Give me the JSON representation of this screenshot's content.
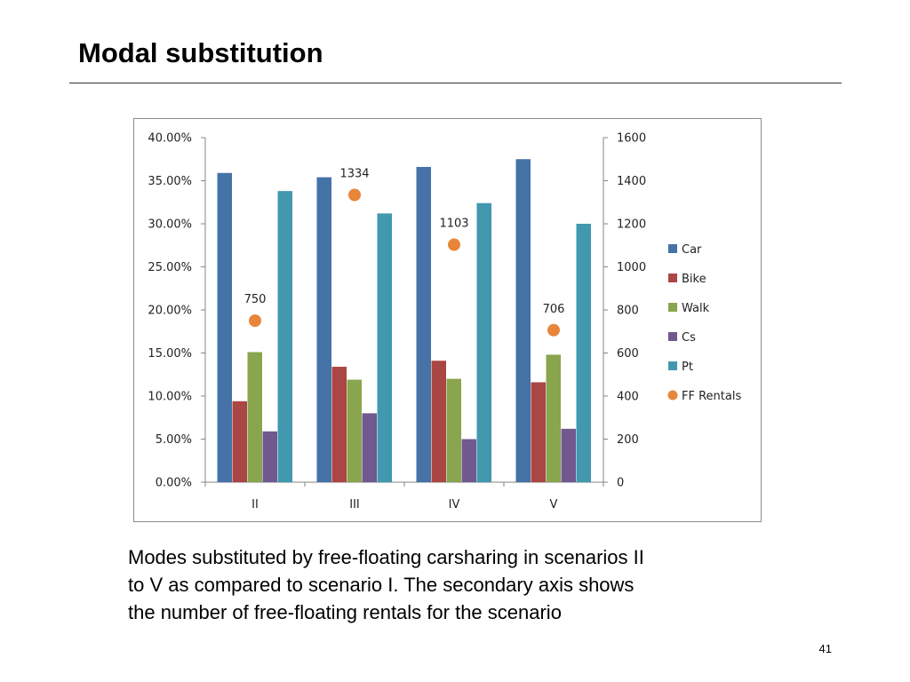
{
  "slide": {
    "title": "Modal substitution",
    "caption_lines": [
      "Modes substituted by free-floating carsharing in scenarios II",
      "to V as compared to scenario I. The secondary axis shows",
      "the number of free-floating rentals for the scenario"
    ],
    "page_number": "41"
  },
  "chart_data": {
    "type": "bar",
    "categories": [
      "II",
      "III",
      "IV",
      "V"
    ],
    "series": [
      {
        "name": "Car",
        "color": "#4572A7",
        "values": [
          0.359,
          0.354,
          0.366,
          0.375
        ]
      },
      {
        "name": "Bike",
        "color": "#AA4643",
        "values": [
          0.094,
          0.134,
          0.141,
          0.116
        ]
      },
      {
        "name": "Walk",
        "color": "#89A54E",
        "values": [
          0.151,
          0.119,
          0.12,
          0.148
        ]
      },
      {
        "name": "Cs",
        "color": "#71588F",
        "values": [
          0.059,
          0.08,
          0.05,
          0.062
        ]
      },
      {
        "name": "Pt",
        "color": "#4198AF",
        "values": [
          0.338,
          0.312,
          0.324,
          0.3
        ]
      }
    ],
    "secondary_series": {
      "name": "FF Rentals",
      "type": "scatter",
      "color": "#E8853A",
      "values": [
        750,
        1334,
        1103,
        706
      ],
      "labels": [
        "750",
        "1334",
        "1103",
        "706"
      ]
    },
    "y_primary": {
      "lim": [
        0,
        0.4
      ],
      "ticks": [
        0,
        0.05,
        0.1,
        0.15,
        0.2,
        0.25,
        0.3,
        0.35,
        0.4
      ],
      "tick_labels": [
        "0.00%",
        "5.00%",
        "10.00%",
        "15.00%",
        "20.00%",
        "25.00%",
        "30.00%",
        "35.00%",
        "40.00%"
      ]
    },
    "y_secondary": {
      "lim": [
        0,
        1600
      ],
      "ticks": [
        0,
        200,
        400,
        600,
        800,
        1000,
        1200,
        1400,
        1600
      ],
      "tick_labels": [
        "0",
        "200",
        "400",
        "600",
        "800",
        "1000",
        "1200",
        "1400",
        "1600"
      ]
    },
    "legend_position": "right",
    "grid": false
  }
}
